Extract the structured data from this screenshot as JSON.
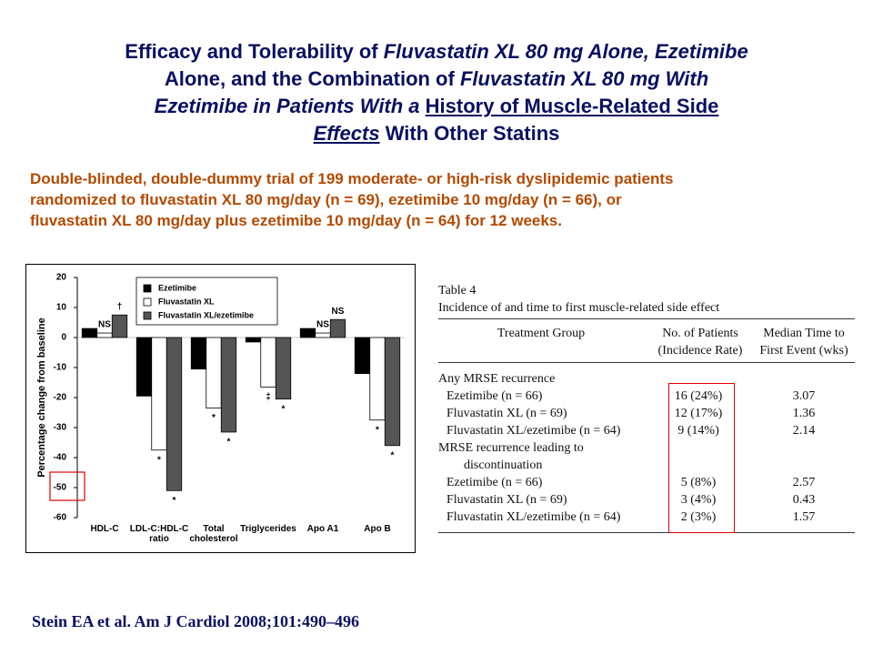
{
  "title_lines": [
    [
      {
        "text": "Efficacy and Tolerability of "
      },
      {
        "text": "Fluvastatin XL 80 mg Alone, Ezetimibe",
        "style": [
          "italic"
        ]
      }
    ],
    [
      {
        "text": "Alone, and the Combination of "
      },
      {
        "text": "Fluvastatin XL 80 mg With",
        "style": [
          "italic"
        ]
      }
    ],
    [
      {
        "text": "Ezetimibe in Patients With a ",
        "style": [
          "italic"
        ]
      },
      {
        "text": "History of Muscle-Related Side",
        "style": [
          "underline"
        ]
      }
    ],
    [
      {
        "text": "Effects",
        "style": [
          "italic",
          "underline"
        ]
      },
      {
        "text": " With Other Statins"
      }
    ]
  ],
  "subtitle_lines": [
    "Double-blinded, double-dummy trial of 199 moderate- or high-risk dyslipidemic patients",
    "randomized to fluvastatin XL 80 mg/day (n = 69), ezetimibe 10 mg/day (n = 66), or",
    "fluvastatin XL 80 mg/day plus ezetimibe 10 mg/day (n = 64) for 12 weeks."
  ],
  "chart_data": {
    "type": "bar",
    "y_label": "Percentage change from baseline",
    "categories": [
      "HDL-C",
      "LDL-C:HDL-C ratio",
      "Total cholesterol",
      "Triglycerides",
      "Apo A1",
      "Apo B"
    ],
    "series": [
      {
        "name": "Ezetimibe",
        "color": "#000000",
        "values": [
          3,
          -19.5,
          -10.5,
          -1.5,
          3,
          -12
        ]
      },
      {
        "name": "Fluvastatin XL",
        "color": "#ffffff",
        "values": [
          1.5,
          -37.5,
          -23.5,
          -16.5,
          1.5,
          -27.5
        ]
      },
      {
        "name": "Fluvastatin XL/ezetimibe",
        "color": "#555555",
        "values": [
          7.5,
          -51,
          -31.5,
          -20.5,
          6,
          -36
        ]
      }
    ],
    "ylim": [
      -60,
      20
    ],
    "yticks": [
      20,
      10,
      0,
      -10,
      -20,
      -30,
      -40,
      -50,
      -60
    ],
    "annotations": [
      {
        "text": "NS",
        "category": "HDL-C",
        "series": "Fluvastatin XL"
      },
      {
        "text": "†",
        "category": "HDL-C",
        "series": "Fluvastatin XL/ezetimibe"
      },
      {
        "text": "*",
        "category": "LDL-C:HDL-C ratio",
        "series": "Fluvastatin XL"
      },
      {
        "text": "*",
        "category": "LDL-C:HDL-C ratio",
        "series": "Fluvastatin XL/ezetimibe"
      },
      {
        "text": "*",
        "category": "Total cholesterol",
        "series": "Fluvastatin XL"
      },
      {
        "text": "*",
        "category": "Total cholesterol",
        "series": "Fluvastatin XL/ezetimibe"
      },
      {
        "text": "‡",
        "category": "Triglycerides",
        "series": "Fluvastatin XL"
      },
      {
        "text": "*",
        "category": "Triglycerides",
        "series": "Fluvastatin XL/ezetimibe"
      },
      {
        "text": "NS",
        "category": "Apo A1",
        "series": "Fluvastatin XL"
      },
      {
        "text": "NS",
        "category": "Apo A1",
        "series": "Fluvastatin XL/ezetimibe"
      },
      {
        "text": "*",
        "category": "Apo B",
        "series": "Fluvastatin XL"
      },
      {
        "text": "*",
        "category": "Apo B",
        "series": "Fluvastatin XL/ezetimibe"
      }
    ]
  },
  "table": {
    "label": "Table 4",
    "caption": "Incidence of and time to first muscle-related side effect",
    "header": [
      [
        "Treatment Group"
      ],
      [
        "No. of Patients",
        "(Incidence Rate)"
      ],
      [
        "Median Time to",
        "First Event (wks)"
      ]
    ],
    "sections": [
      {
        "title": [
          "Any MRSE recurrence"
        ],
        "rows": [
          [
            "Ezetimibe (n = 66)",
            "16 (24%)",
            "3.07"
          ],
          [
            "Fluvastatin XL (n = 69)",
            "12 (17%)",
            "1.36"
          ],
          [
            "Fluvastatin XL/ezetimibe (n = 64)",
            "9 (14%)",
            "2.14"
          ]
        ]
      },
      {
        "title": [
          "MRSE recurrence leading to",
          "discontinuation"
        ],
        "rows": [
          [
            "Ezetimibe (n = 66)",
            "5 (8%)",
            "2.57"
          ],
          [
            "Fluvastatin XL (n = 69)",
            "3 (4%)",
            "0.43"
          ],
          [
            "Fluvastatin XL/ezetimibe (n = 64)",
            "2 (3%)",
            "1.57"
          ]
        ]
      }
    ]
  },
  "citation": "Stein EA et al. Am J Cardiol 2008;101:490–496"
}
